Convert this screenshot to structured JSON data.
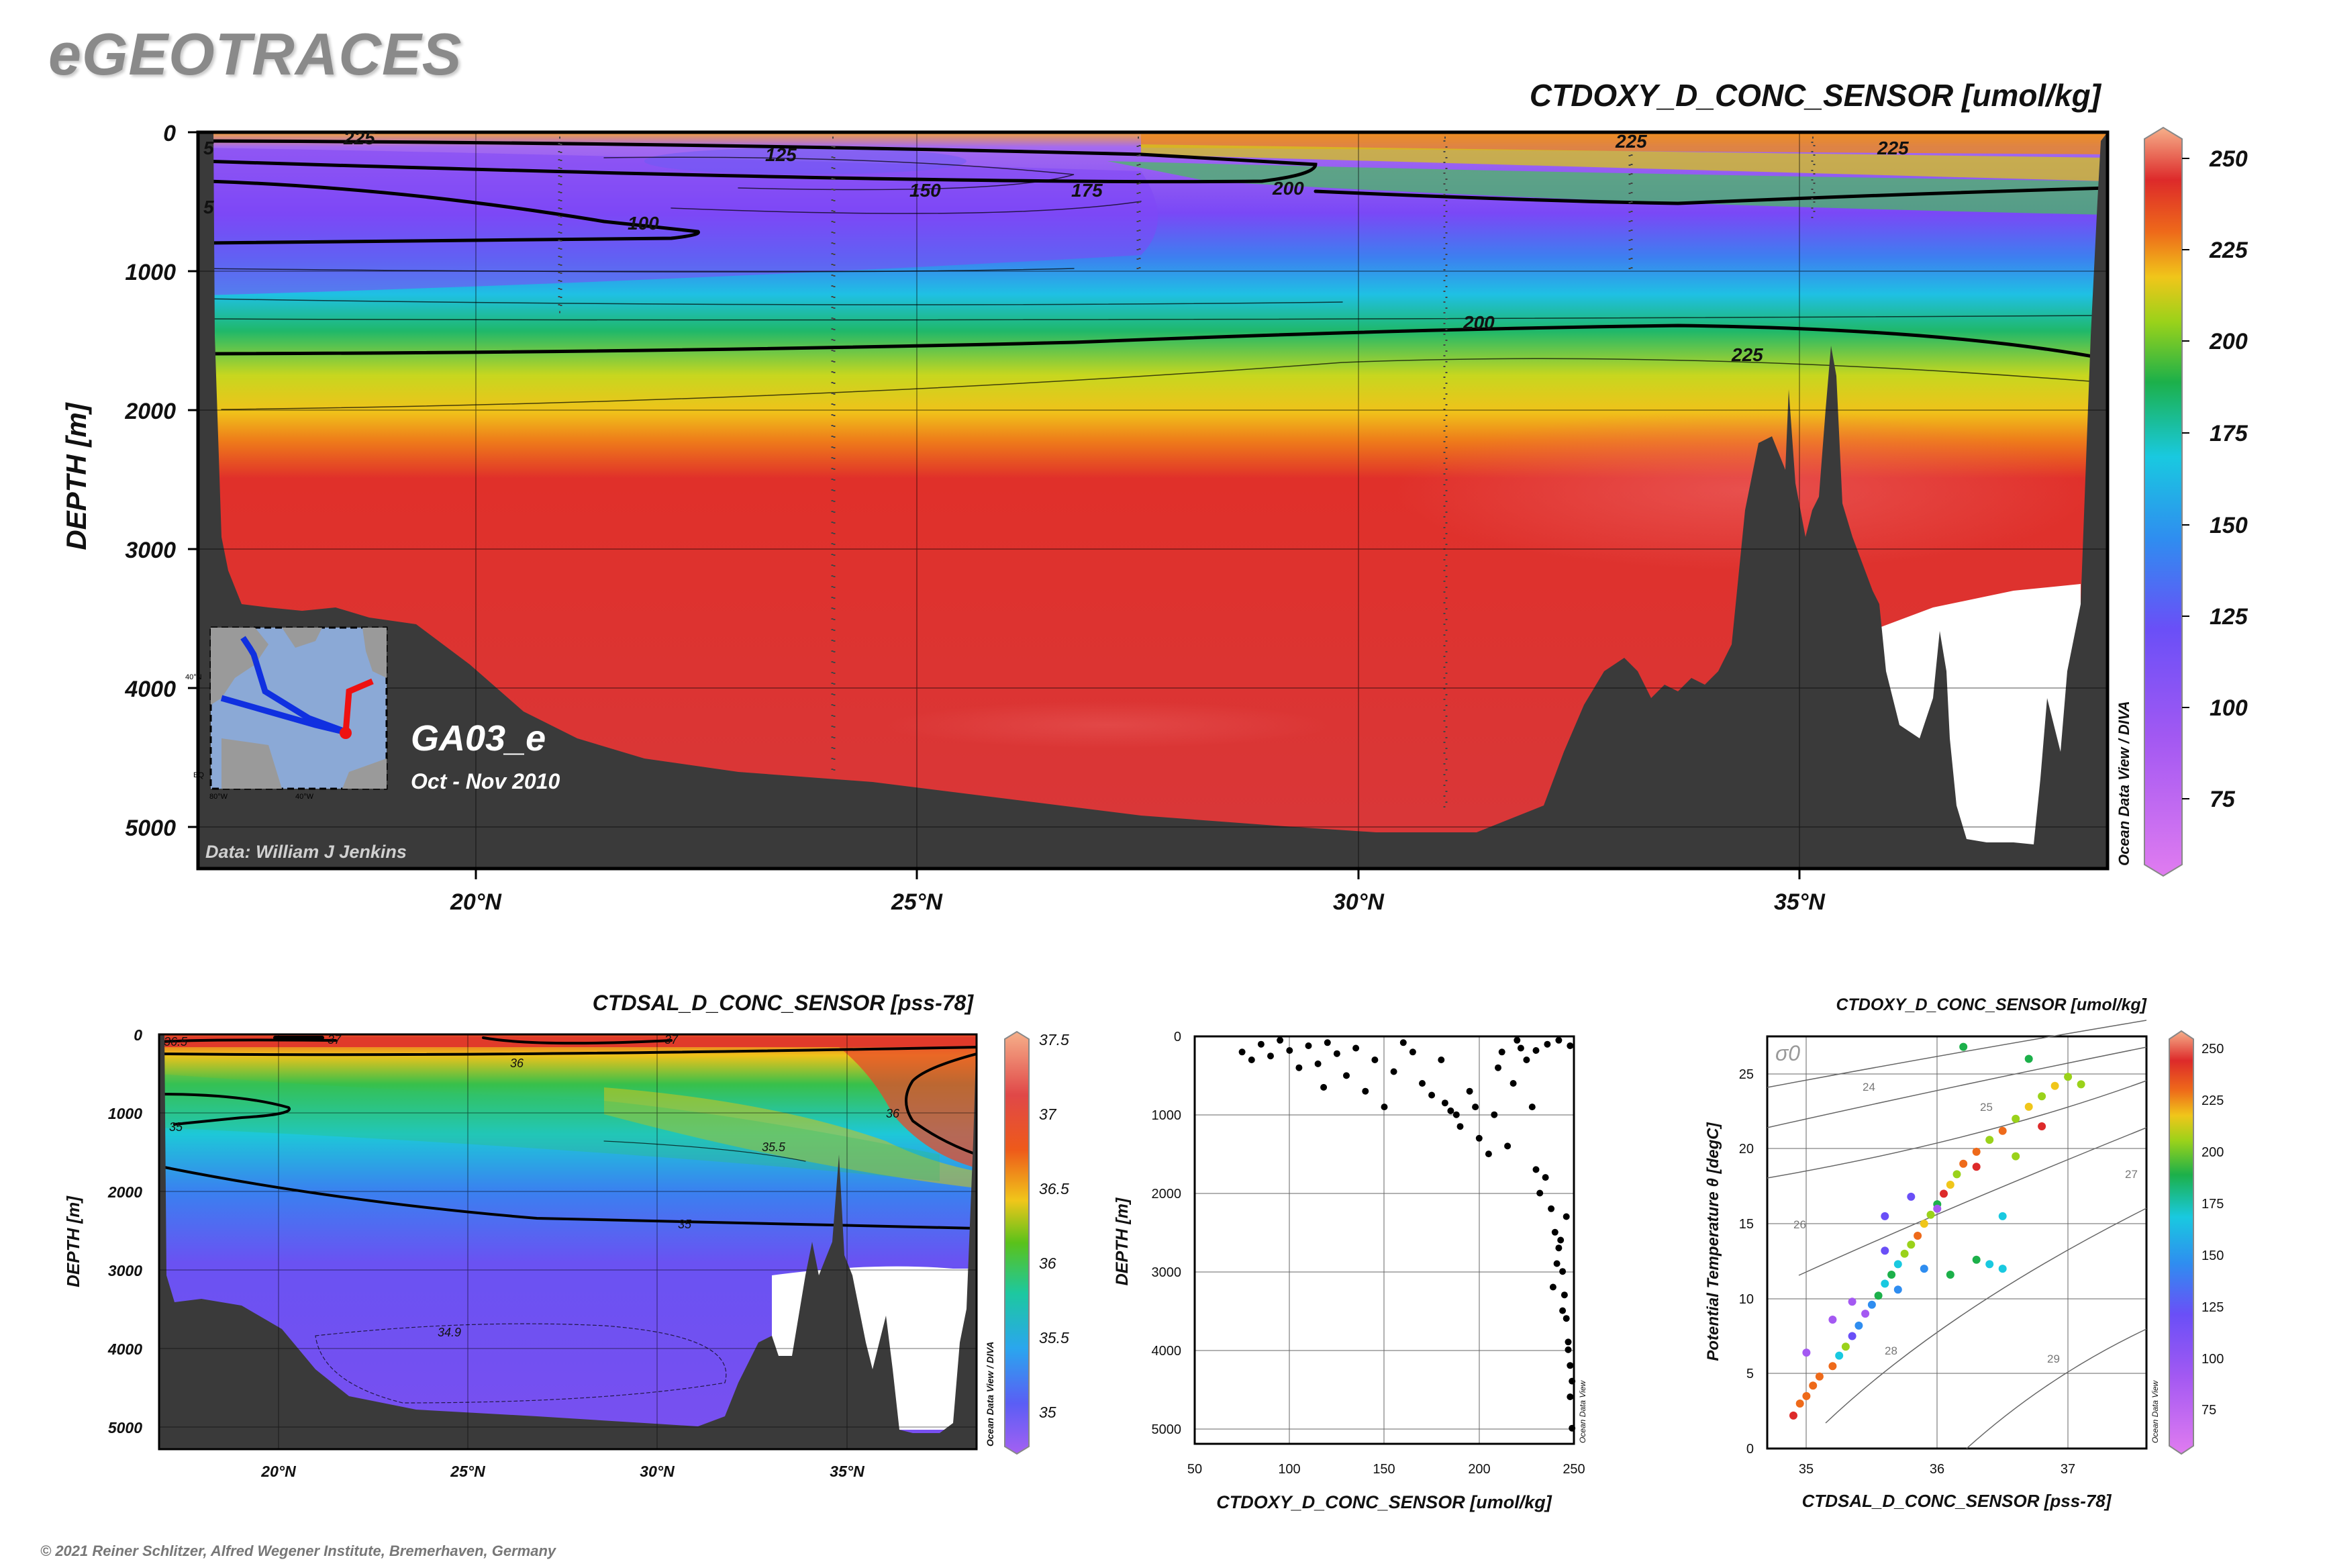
{
  "page": {
    "brand": "eGEOTRACES",
    "copyright": "© 2021 Reiner Schlitzer, Alfred Wegener Institute, Bremerhaven, Germany"
  },
  "chart_data": [
    {
      "type": "heatmap",
      "title": "CTDOXY_D_CONC_SENSOR [umol/kg]",
      "ylabel": "DEPTH [m]",
      "xlabel": "",
      "y_ticks": [
        0,
        1000,
        2000,
        3000,
        4000,
        5000
      ],
      "x_ticks": [
        "20°N",
        "25°N",
        "30°N",
        "35°N"
      ],
      "x_tick_values": [
        20,
        25,
        30,
        35
      ],
      "xlim": [
        16.8,
        38.5
      ],
      "ylim": [
        5300,
        0
      ],
      "colorbar_ticks": [
        75,
        100,
        125,
        150,
        175,
        200,
        225,
        250
      ],
      "colorbar_range": [
        55,
        260
      ],
      "contour_labels": [
        "225",
        "125",
        "150",
        "175",
        "200",
        "100",
        "200",
        "225",
        "225",
        "225",
        "5",
        "5"
      ],
      "section_name": "GA03_e",
      "date_range": "Oct - Nov 2010",
      "credit": "Data: William J Jenkins",
      "side_label": "Ocean Data View / DIVA",
      "inset_labels": [
        "40°N",
        "80°W",
        "40°W",
        "EQ"
      ]
    },
    {
      "type": "heatmap",
      "title": "CTDSAL_D_CONC_SENSOR [pss-78]",
      "ylabel": "DEPTH [m]",
      "y_ticks": [
        0,
        1000,
        2000,
        3000,
        4000,
        5000
      ],
      "x_ticks": [
        "20°N",
        "25°N",
        "30°N",
        "35°N"
      ],
      "x_tick_values": [
        20,
        25,
        30,
        35
      ],
      "colorbar_ticks": [
        35,
        35.5,
        36,
        36.5,
        37,
        37.5
      ],
      "colorbar_range": [
        34.8,
        37.5
      ],
      "contour_labels": [
        "36.5",
        "37",
        "37",
        "36",
        "36",
        "35",
        "35.5",
        "35",
        "34.9"
      ],
      "side_label": "Ocean Data View / DIVA"
    },
    {
      "type": "scatter",
      "xlabel": "CTDOXY_D_CONC_SENSOR [umol/kg]",
      "ylabel": "DEPTH [m]",
      "x_ticks": [
        50,
        100,
        150,
        200,
        250
      ],
      "y_ticks": [
        0,
        1000,
        2000,
        3000,
        4000,
        5000
      ],
      "xlim": [
        50,
        250
      ],
      "ylim": [
        5200,
        0
      ],
      "side_label": "Ocean Data View",
      "points": [
        [
          75,
          200
        ],
        [
          80,
          300
        ],
        [
          85,
          100
        ],
        [
          90,
          250
        ],
        [
          95,
          50
        ],
        [
          100,
          180
        ],
        [
          105,
          400
        ],
        [
          110,
          120
        ],
        [
          115,
          350
        ],
        [
          118,
          650
        ],
        [
          120,
          80
        ],
        [
          125,
          220
        ],
        [
          130,
          500
        ],
        [
          135,
          150
        ],
        [
          140,
          700
        ],
        [
          145,
          300
        ],
        [
          150,
          900
        ],
        [
          155,
          450
        ],
        [
          160,
          80
        ],
        [
          165,
          200
        ],
        [
          170,
          600
        ],
        [
          175,
          750
        ],
        [
          180,
          300
        ],
        [
          182,
          850
        ],
        [
          185,
          950
        ],
        [
          188,
          1000
        ],
        [
          190,
          1150
        ],
        [
          195,
          700
        ],
        [
          198,
          900
        ],
        [
          200,
          1300
        ],
        [
          205,
          1500
        ],
        [
          208,
          1000
        ],
        [
          210,
          400
        ],
        [
          212,
          200
        ],
        [
          215,
          1400
        ],
        [
          218,
          600
        ],
        [
          220,
          50
        ],
        [
          222,
          150
        ],
        [
          225,
          300
        ],
        [
          228,
          900
        ],
        [
          230,
          1700
        ],
        [
          232,
          2000
        ],
        [
          235,
          1800
        ],
        [
          238,
          2200
        ],
        [
          240,
          2500
        ],
        [
          242,
          2700
        ],
        [
          244,
          3000
        ],
        [
          245,
          3300
        ],
        [
          246,
          3600
        ],
        [
          247,
          3900
        ],
        [
          248,
          4200
        ],
        [
          248,
          4600
        ],
        [
          249,
          5000
        ],
        [
          246,
          2300
        ],
        [
          243,
          2600
        ],
        [
          241,
          2900
        ],
        [
          239,
          3200
        ],
        [
          244,
          3500
        ],
        [
          247,
          4000
        ],
        [
          249,
          4400
        ],
        [
          236,
          100
        ],
        [
          242,
          50
        ],
        [
          248,
          120
        ],
        [
          230,
          180
        ]
      ]
    },
    {
      "type": "scatter",
      "title": "CTDOXY_D_CONC_SENSOR [umol/kg]",
      "xlabel": "CTDSAL_D_CONC_SENSOR [pss-78]",
      "ylabel": "Potential Temperature θ [degC]",
      "x_ticks": [
        35,
        36,
        37
      ],
      "y_ticks": [
        0,
        5,
        10,
        15,
        20,
        25
      ],
      "xlim": [
        34.7,
        37.6
      ],
      "ylim": [
        0,
        27.5
      ],
      "isopycnal_labels": [
        "24",
        "25",
        "26",
        "27",
        "28",
        "29"
      ],
      "sigma_label": "σ0",
      "colorbar_ticks": [
        75,
        100,
        125,
        150,
        175,
        200,
        225,
        250
      ],
      "colorbar_range": [
        55,
        260
      ],
      "side_label": "Ocean Data View",
      "points": [
        [
          34.9,
          2.2,
          240
        ],
        [
          34.95,
          3.0,
          235
        ],
        [
          35.0,
          3.5,
          238
        ],
        [
          35.05,
          4.2,
          230
        ],
        [
          35.1,
          4.8,
          236
        ],
        [
          35.2,
          5.5,
          228
        ],
        [
          35.25,
          6.2,
          180
        ],
        [
          35.3,
          6.8,
          200
        ],
        [
          35.35,
          7.5,
          120
        ],
        [
          35.4,
          8.2,
          160
        ],
        [
          35.45,
          9.0,
          100
        ],
        [
          35.5,
          9.6,
          150
        ],
        [
          35.55,
          10.2,
          185
        ],
        [
          35.6,
          11.0,
          170
        ],
        [
          35.65,
          11.6,
          190
        ],
        [
          35.7,
          12.3,
          175
        ],
        [
          35.75,
          13.0,
          205
        ],
        [
          35.8,
          13.6,
          210
        ],
        [
          35.85,
          14.2,
          230
        ],
        [
          35.9,
          15.0,
          215
        ],
        [
          35.95,
          15.6,
          200
        ],
        [
          36.0,
          16.3,
          190
        ],
        [
          36.05,
          17.0,
          240
        ],
        [
          36.1,
          17.6,
          215
        ],
        [
          36.15,
          18.3,
          205
        ],
        [
          36.2,
          19.0,
          230
        ],
        [
          36.3,
          19.8,
          225
        ],
        [
          36.4,
          20.6,
          210
        ],
        [
          36.5,
          21.2,
          235
        ],
        [
          36.6,
          22.0,
          200
        ],
        [
          36.7,
          22.8,
          220
        ],
        [
          36.8,
          23.5,
          205
        ],
        [
          36.9,
          24.2,
          215
        ],
        [
          37.0,
          24.8,
          210
        ],
        [
          36.2,
          26.8,
          190
        ],
        [
          36.7,
          26.0,
          195
        ],
        [
          36.3,
          12.6,
          185
        ],
        [
          36.4,
          12.3,
          180
        ],
        [
          36.5,
          12.0,
          182
        ],
        [
          36.1,
          11.6,
          186
        ],
        [
          35.9,
          12.0,
          150
        ],
        [
          35.6,
          13.2,
          140
        ],
        [
          35.35,
          9.8,
          115
        ],
        [
          35.2,
          8.6,
          110
        ],
        [
          35.6,
          15.5,
          120
        ],
        [
          36.0,
          16.0,
          110
        ],
        [
          35.8,
          16.8,
          130
        ],
        [
          36.5,
          15.5,
          170
        ],
        [
          36.8,
          21.5,
          245
        ],
        [
          36.3,
          18.8,
          240
        ],
        [
          35.0,
          6.4,
          105
        ],
        [
          35.7,
          10.6,
          160
        ],
        [
          36.6,
          19.5,
          200
        ],
        [
          37.1,
          24.3,
          200
        ]
      ]
    }
  ]
}
